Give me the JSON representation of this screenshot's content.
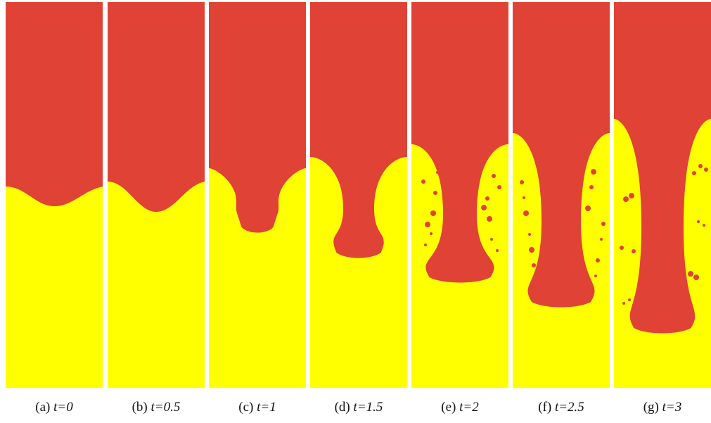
{
  "panels": [
    {
      "letter": "(a)",
      "time": "t=0"
    },
    {
      "letter": "(b)",
      "time": "t=0.5"
    },
    {
      "letter": "(c)",
      "time": "t=1"
    },
    {
      "letter": "(d)",
      "time": "t=1.5"
    },
    {
      "letter": "(e)",
      "time": "t=2"
    },
    {
      "letter": "(f)",
      "time": "t=2.5"
    },
    {
      "letter": "(g)",
      "time": "t=3"
    }
  ]
}
